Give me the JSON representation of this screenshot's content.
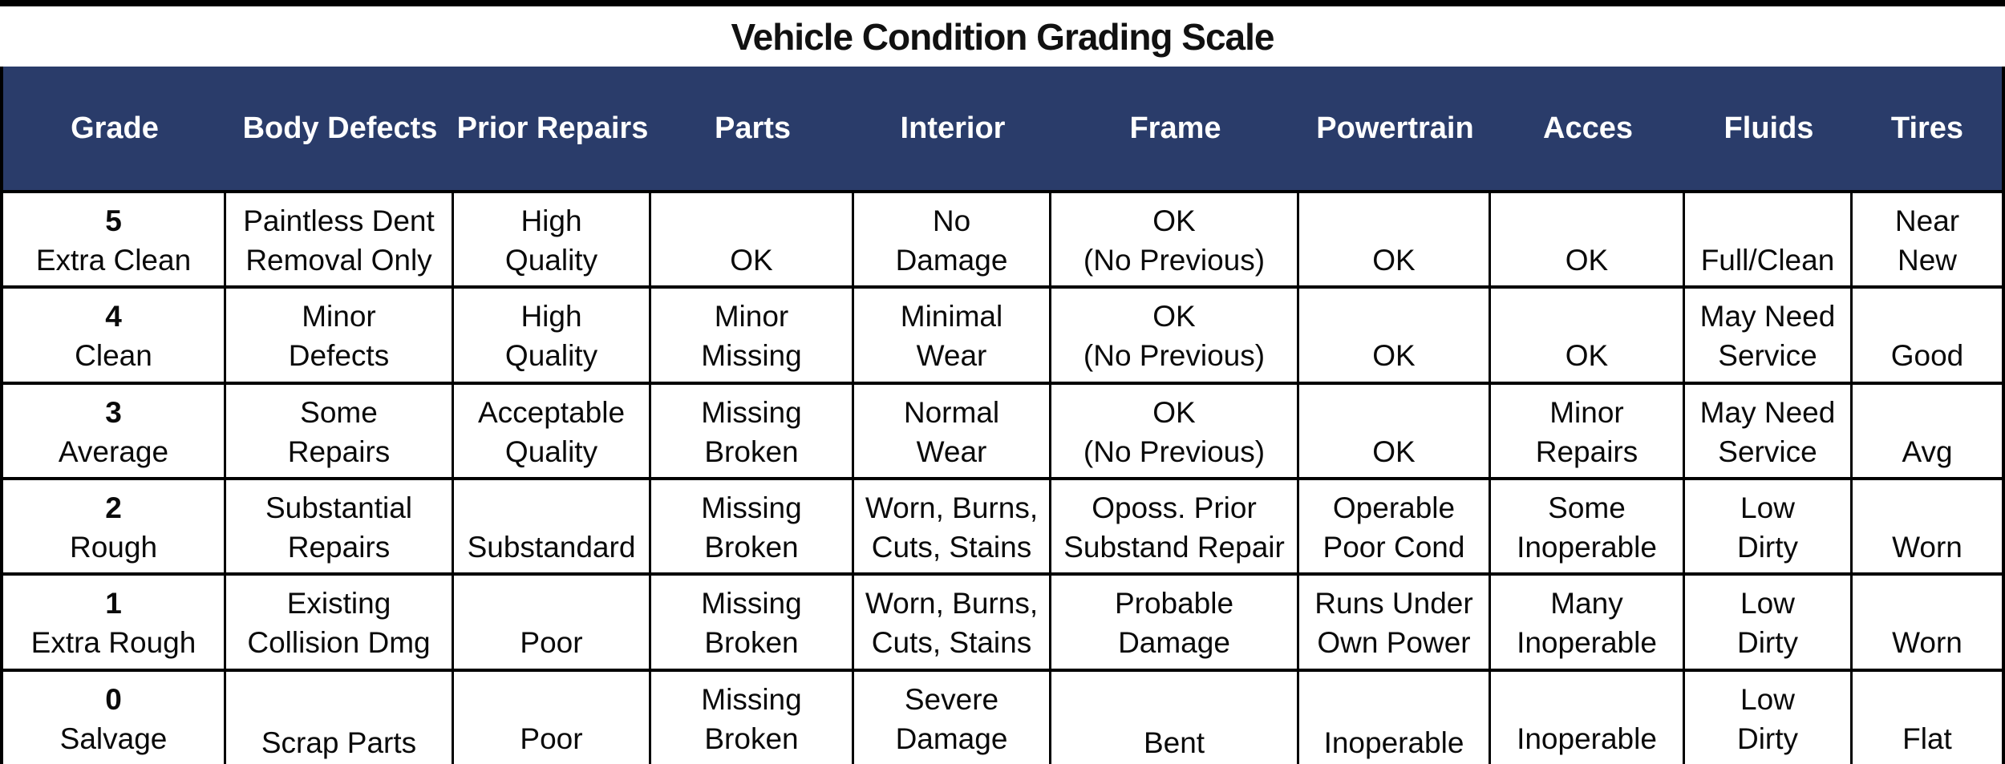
{
  "title": "Vehicle Condition Grading Scale",
  "colors": {
    "header_bg": "#2a3c6a",
    "header_text": "#ffffff",
    "border": "#000000",
    "body_text": "#0a0a0a"
  },
  "table": {
    "columns": [
      "Grade",
      "Body Defects",
      "Prior Repairs",
      "Parts",
      "Interior",
      "Frame",
      "Powertrain",
      "Acces",
      "Fluids",
      "Tires"
    ],
    "rows": [
      {
        "grade": "5",
        "grade_label": "Extra Clean",
        "cells": [
          [
            "5",
            "Extra Clean"
          ],
          [
            "Paintless Dent",
            "Removal Only"
          ],
          [
            "High",
            "Quality"
          ],
          [
            "",
            "OK"
          ],
          [
            "No",
            "Damage"
          ],
          [
            "OK",
            "(No Previous)"
          ],
          [
            "",
            "OK"
          ],
          [
            "",
            "OK"
          ],
          [
            "",
            "Full/Clean"
          ],
          [
            "Near",
            "New"
          ]
        ]
      },
      {
        "grade": "4",
        "grade_label": "Clean",
        "cells": [
          [
            "4",
            "Clean"
          ],
          [
            "Minor",
            "Defects"
          ],
          [
            "High",
            "Quality"
          ],
          [
            "Minor",
            "Missing"
          ],
          [
            "Minimal",
            "Wear"
          ],
          [
            "OK",
            "(No Previous)"
          ],
          [
            "",
            "OK"
          ],
          [
            "",
            "OK"
          ],
          [
            "May Need",
            "Service"
          ],
          [
            "",
            "Good"
          ]
        ]
      },
      {
        "grade": "3",
        "grade_label": "Average",
        "cells": [
          [
            "3",
            "Average"
          ],
          [
            "Some",
            "Repairs"
          ],
          [
            "Acceptable",
            "Quality"
          ],
          [
            "Missing",
            "Broken"
          ],
          [
            "Normal",
            "Wear"
          ],
          [
            "OK",
            "(No Previous)"
          ],
          [
            "",
            "OK"
          ],
          [
            "Minor",
            "Repairs"
          ],
          [
            "May Need",
            "Service"
          ],
          [
            "",
            "Avg"
          ]
        ]
      },
      {
        "grade": "2",
        "grade_label": "Rough",
        "cells": [
          [
            "2",
            "Rough"
          ],
          [
            "Substantial",
            "Repairs"
          ],
          [
            "",
            "Substandard"
          ],
          [
            "Missing",
            "Broken"
          ],
          [
            "Worn, Burns,",
            "Cuts, Stains"
          ],
          [
            "Oposs. Prior",
            "Substand Repair"
          ],
          [
            "Operable",
            "Poor Cond"
          ],
          [
            "Some",
            "Inoperable"
          ],
          [
            "Low",
            "Dirty"
          ],
          [
            "",
            "Worn"
          ]
        ]
      },
      {
        "grade": "1",
        "grade_label": "Extra Rough",
        "cells": [
          [
            "1",
            "Extra Rough"
          ],
          [
            "Existing",
            "Collision Dmg"
          ],
          [
            "",
            "Poor"
          ],
          [
            "Missing",
            "Broken"
          ],
          [
            "Worn, Burns,",
            "Cuts, Stains"
          ],
          [
            "Probable",
            "Damage"
          ],
          [
            "Runs Under",
            "Own Power"
          ],
          [
            "Many",
            "Inoperable"
          ],
          [
            "Low",
            "Dirty"
          ],
          [
            "",
            "Worn"
          ]
        ]
      },
      {
        "grade": "0",
        "grade_label": "Salvage",
        "cells": [
          [
            "0",
            "Salvage"
          ],
          {
            "lines": [
              "Scrap Parts"
            ],
            "align": "bottom"
          },
          [
            "",
            "Poor"
          ],
          [
            "Missing",
            "Broken"
          ],
          [
            "Severe",
            "Damage"
          ],
          {
            "lines": [
              "Bent"
            ],
            "align": "bottom"
          },
          {
            "lines": [
              "Inoperable"
            ],
            "align": "bottom"
          },
          [
            "",
            "Inoperable"
          ],
          [
            "Low",
            "Dirty"
          ],
          [
            "",
            "Flat"
          ]
        ]
      }
    ]
  }
}
